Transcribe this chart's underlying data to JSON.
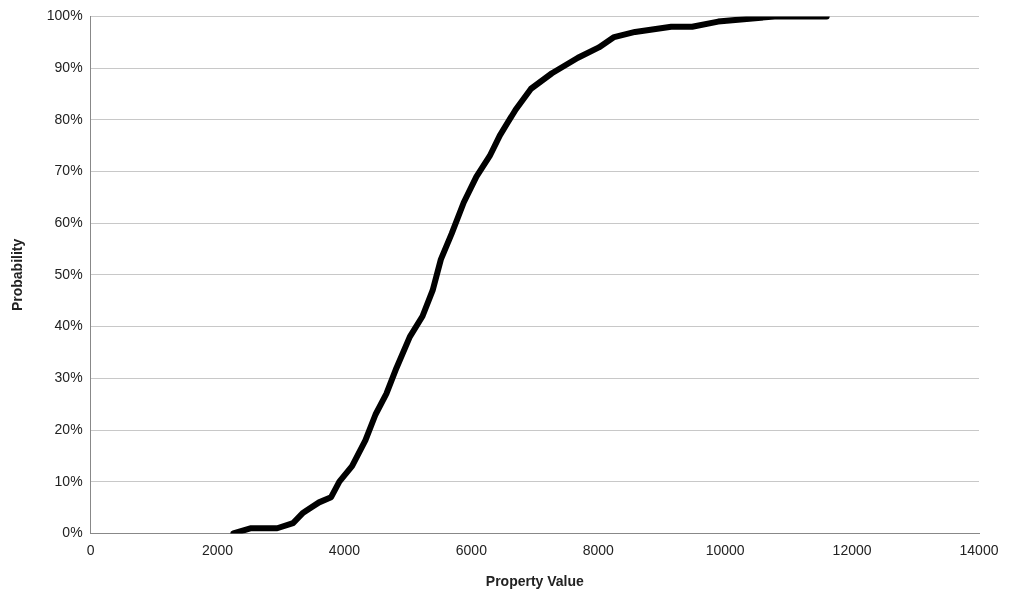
{
  "chart_data": {
    "type": "line",
    "xlabel": "Property Value",
    "ylabel": "Probability",
    "x": [
      2250,
      2530,
      2940,
      3190,
      3350,
      3600,
      3790,
      3920,
      4120,
      4330,
      4490,
      4660,
      4820,
      5030,
      5230,
      5390,
      5520,
      5690,
      5880,
      6080,
      6290,
      6450,
      6700,
      6940,
      7270,
      7680,
      8010,
      8250,
      8580,
      9150,
      9480,
      9890,
      10780,
      11600
    ],
    "series": [
      {
        "color": "#000000",
        "values": [
          0,
          1,
          1,
          2,
          4,
          6,
          7,
          10,
          13,
          18,
          23,
          27,
          32,
          38,
          42,
          47,
          53,
          58,
          64,
          69,
          73,
          77,
          82,
          86,
          89,
          92,
          94,
          96,
          97,
          98,
          98,
          99,
          100,
          100
        ]
      }
    ],
    "xlim": [
      0,
      14000
    ],
    "xticks": [
      0,
      2000,
      4000,
      6000,
      8000,
      10000,
      12000,
      14000
    ],
    "ylim": [
      0,
      100
    ],
    "yticks": [
      {
        "value": 0,
        "label": "0%"
      },
      {
        "value": 10,
        "label": "10%"
      },
      {
        "value": 20,
        "label": "20%"
      },
      {
        "value": 30,
        "label": "30%"
      },
      {
        "value": 40,
        "label": "40%"
      },
      {
        "value": 50,
        "label": "50%"
      },
      {
        "value": 60,
        "label": "60%"
      },
      {
        "value": 70,
        "label": "70%"
      },
      {
        "value": 80,
        "label": "80%"
      },
      {
        "value": 90,
        "label": "90%"
      },
      {
        "value": 100,
        "label": "100%"
      }
    ],
    "grid": "y",
    "legend": false,
    "marker": "none",
    "line_style": "solid"
  }
}
